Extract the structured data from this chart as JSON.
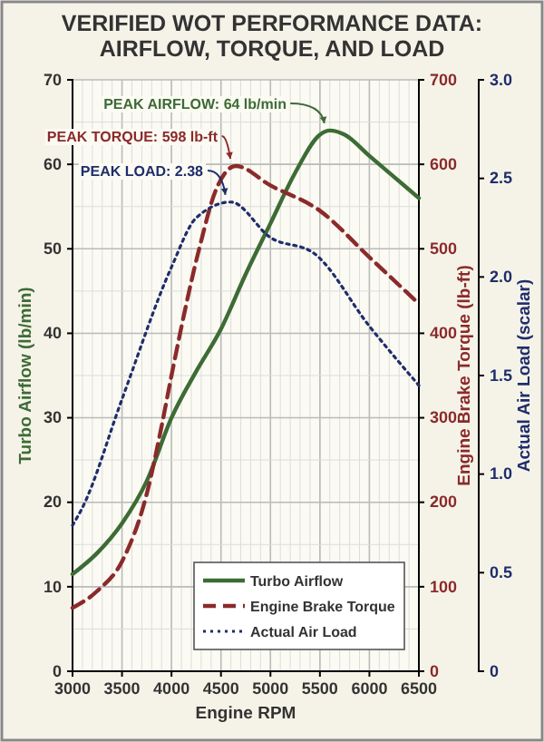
{
  "chart_data": {
    "type": "line",
    "title": "VERIFIED WOT PERFORMANCE DATA:\nAIRFLOW, TORQUE, AND LOAD",
    "xlabel": "Engine RPM",
    "ylabel": "Turbo Airflow (lb/min)",
    "y2label": "Engine Brake Torque (lb-ft)",
    "y3label": "Actual Air Load (scalar)",
    "xlim": [
      3000,
      6500
    ],
    "xticks": [
      3000,
      3500,
      4000,
      4500,
      5000,
      5500,
      6000,
      6500
    ],
    "ylim": [
      0,
      70
    ],
    "yticks": [
      0,
      10,
      20,
      30,
      40,
      50,
      60,
      70
    ],
    "y2lim": [
      0,
      700
    ],
    "y2ticks": [
      0,
      100,
      200,
      300,
      400,
      500,
      600,
      700
    ],
    "y3lim": [
      0,
      3
    ],
    "y3ticks": [
      {
        "value": 0,
        "label": "0"
      },
      {
        "value": 0.5,
        "label": "0.5"
      },
      {
        "value": 1,
        "label": "1.0"
      },
      {
        "value": 1.5,
        "label": "1.5"
      },
      {
        "value": 2,
        "label": "2.0"
      },
      {
        "value": 2.5,
        "label": "2.5"
      },
      {
        "value": 3,
        "label": "3.0"
      }
    ],
    "grid": true,
    "legend": "bottom right",
    "series": [
      {
        "name": "Turbo Airflow",
        "color": "#3d6b35",
        "line_style": "solid",
        "x": [
          3000,
          3250,
          3500,
          3750,
          4000,
          4250,
          4500,
          4750,
          5000,
          5250,
          5500,
          5600,
          5750,
          6000,
          6250,
          6500
        ],
        "values": [
          11.5,
          14,
          17.5,
          22.5,
          30,
          35.5,
          40.5,
          47,
          53,
          59,
          63.5,
          64,
          63.5,
          61,
          58.5,
          56
        ]
      },
      {
        "name": "Engine Brake Torque",
        "color": "#8b2a2a",
        "line_style": "dashed",
        "axis": "y2",
        "x": [
          3000,
          3250,
          3500,
          3750,
          3900,
          4000,
          4280,
          4450,
          4650,
          5000,
          5500,
          6000,
          6500
        ],
        "values": [
          75,
          95,
          130,
          210,
          290,
          350,
          500,
          570,
          598,
          575,
          545,
          490,
          435
        ]
      },
      {
        "name": "Actual Air Load",
        "color": "#1f2d6b",
        "line_style": "dotted",
        "axis": "y3",
        "x": [
          3000,
          3100,
          3500,
          4000,
          4250,
          4600,
          5000,
          5440,
          6000,
          6500
        ],
        "values": [
          0.74,
          0.83,
          1.38,
          2.05,
          2.3,
          2.38,
          2.2,
          2.12,
          1.75,
          1.45
        ]
      }
    ],
    "annotations": [
      "PEAK AIRFLOW: 64 lb/min",
      "PEAK TORQUE: 598 lb-ft",
      "PEAK LOAD: 2.38"
    ]
  }
}
